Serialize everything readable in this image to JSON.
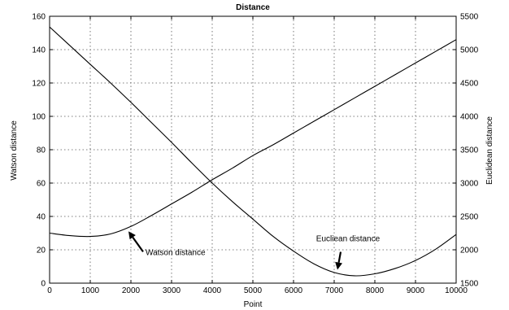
{
  "chart_data": {
    "type": "line",
    "title": "Distance",
    "xlabel": "Point",
    "ylabel_left": "Watson distance",
    "ylabel_right": "Euclidean distance",
    "xlim": [
      0,
      10000
    ],
    "ylim_left": [
      0,
      160
    ],
    "ylim_right": [
      1500,
      5500
    ],
    "grid": true,
    "x_ticks": [
      0,
      1000,
      2000,
      3000,
      4000,
      5000,
      6000,
      7000,
      8000,
      9000,
      10000
    ],
    "y_left_ticks": [
      0,
      20,
      40,
      60,
      80,
      100,
      120,
      140,
      160
    ],
    "y_right_ticks": [
      1500,
      2000,
      2500,
      3000,
      3500,
      4000,
      4500,
      5000,
      5500
    ],
    "series": [
      {
        "name": "Watson distance",
        "axis": "left",
        "x": [
          0,
          500,
          1000,
          1500,
          2000,
          2500,
          3000,
          3500,
          4000,
          4500,
          5000,
          5500,
          6000,
          6500,
          7000,
          7500,
          8000,
          8500,
          9000,
          9500,
          10000
        ],
        "y": [
          30,
          28.5,
          28,
          29.5,
          34,
          40.5,
          47.5,
          54.5,
          62,
          69,
          76.5,
          83,
          90,
          97,
          104,
          111,
          118,
          125,
          132,
          139,
          146
        ]
      },
      {
        "name": "Euclidean distance",
        "axis": "right",
        "x": [
          0,
          500,
          1000,
          1500,
          2000,
          2500,
          3000,
          3500,
          4000,
          4500,
          5000,
          5500,
          6000,
          6500,
          7000,
          7500,
          8000,
          8500,
          9000,
          9500,
          10000
        ],
        "y": [
          5340,
          5060,
          4780,
          4500,
          4210,
          3910,
          3610,
          3300,
          3000,
          2720,
          2460,
          2200,
          1980,
          1790,
          1660,
          1610,
          1640,
          1720,
          1840,
          2010,
          2230
        ]
      }
    ],
    "annotations": [
      {
        "text": "Watson distance",
        "arrow_to": [
          1900,
          33
        ],
        "axis": "left"
      },
      {
        "text": "Eucliean distance",
        "arrow_to": [
          7080,
          1640
        ],
        "axis": "right"
      }
    ]
  }
}
